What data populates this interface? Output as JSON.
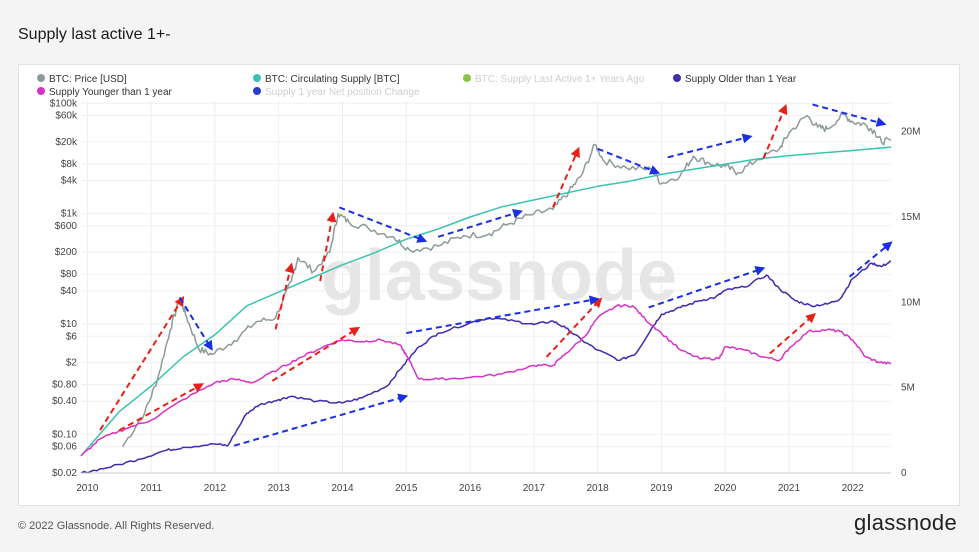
{
  "page": {
    "title": "Supply last active 1+-",
    "copyright": "© 2022 Glassnode. All Rights Reserved.",
    "brand": "glassnode",
    "watermark": "glassnode"
  },
  "chart_data": {
    "type": "line",
    "title": "Supply last active 1+-",
    "legend_position": "top-left",
    "grid": true,
    "x_range": [
      2009.9,
      2022.6
    ],
    "x_ticks": [
      {
        "label": "2010",
        "value": 2010
      },
      {
        "label": "2011",
        "value": 2011
      },
      {
        "label": "2012",
        "value": 2012
      },
      {
        "label": "2013",
        "value": 2013
      },
      {
        "label": "2014",
        "value": 2014
      },
      {
        "label": "2015",
        "value": 2015
      },
      {
        "label": "2016",
        "value": 2016
      },
      {
        "label": "2017",
        "value": 2017
      },
      {
        "label": "2018",
        "value": 2018
      },
      {
        "label": "2019",
        "value": 2019
      },
      {
        "label": "2020",
        "value": 2020
      },
      {
        "label": "2021",
        "value": 2021
      },
      {
        "label": "2022",
        "value": 2022
      }
    ],
    "y_left": {
      "scale": "log",
      "unit": "USD",
      "range": [
        0.02,
        110000
      ],
      "ticks": [
        {
          "label": "$100k",
          "value": 100000
        },
        {
          "label": "$60k",
          "value": 60000
        },
        {
          "label": "$20k",
          "value": 20000
        },
        {
          "label": "$8k",
          "value": 8000
        },
        {
          "label": "$4k",
          "value": 4000
        },
        {
          "label": "$1k",
          "value": 1000
        },
        {
          "label": "$600",
          "value": 600
        },
        {
          "label": "$200",
          "value": 200
        },
        {
          "label": "$80",
          "value": 80
        },
        {
          "label": "$40",
          "value": 40
        },
        {
          "label": "$10",
          "value": 10
        },
        {
          "label": "$6",
          "value": 6
        },
        {
          "label": "$2",
          "value": 2
        },
        {
          "label": "$0.80",
          "value": 0.8
        },
        {
          "label": "$0.40",
          "value": 0.4
        },
        {
          "label": "$0.10",
          "value": 0.1
        },
        {
          "label": "$0.06",
          "value": 0.06
        },
        {
          "label": "$0.02",
          "value": 0.02
        }
      ]
    },
    "y_right": {
      "scale": "linear",
      "unit": "BTC",
      "range": [
        0,
        21800000
      ],
      "ticks": [
        {
          "label": "20M",
          "value": 20000000
        },
        {
          "label": "15M",
          "value": 15000000
        },
        {
          "label": "10M",
          "value": 10000000
        },
        {
          "label": "5M",
          "value": 5000000
        },
        {
          "label": "0",
          "value": 0
        }
      ]
    },
    "series": [
      {
        "name": "BTC: Price [USD]",
        "color": "#8e9a9b",
        "axis": "left",
        "visible": true,
        "points": [
          [
            2010.55,
            0.06
          ],
          [
            2010.9,
            0.25
          ],
          [
            2011.1,
            1
          ],
          [
            2011.3,
            8
          ],
          [
            2011.45,
            30
          ],
          [
            2011.55,
            14
          ],
          [
            2011.75,
            3.5
          ],
          [
            2011.95,
            2.8
          ],
          [
            2012.3,
            5
          ],
          [
            2012.65,
            11
          ],
          [
            2012.95,
            13
          ],
          [
            2013.2,
            60
          ],
          [
            2013.3,
            160
          ],
          [
            2013.55,
            90
          ],
          [
            2013.8,
            200
          ],
          [
            2013.93,
            1000
          ],
          [
            2014.1,
            700
          ],
          [
            2014.4,
            550
          ],
          [
            2014.8,
            380
          ],
          [
            2015.05,
            220
          ],
          [
            2015.5,
            260
          ],
          [
            2015.9,
            400
          ],
          [
            2016.3,
            430
          ],
          [
            2016.6,
            650
          ],
          [
            2016.95,
            950
          ],
          [
            2017.3,
            1200
          ],
          [
            2017.55,
            2500
          ],
          [
            2017.75,
            5000
          ],
          [
            2017.96,
            18000
          ],
          [
            2018.1,
            9000
          ],
          [
            2018.45,
            6800
          ],
          [
            2018.85,
            6300
          ],
          [
            2019.0,
            3500
          ],
          [
            2019.3,
            5000
          ],
          [
            2019.5,
            11000
          ],
          [
            2019.75,
            8200
          ],
          [
            2020.0,
            7200
          ],
          [
            2020.2,
            5500
          ],
          [
            2020.5,
            9500
          ],
          [
            2020.85,
            15000
          ],
          [
            2021.0,
            29000
          ],
          [
            2021.28,
            60000
          ],
          [
            2021.45,
            37000
          ],
          [
            2021.6,
            34000
          ],
          [
            2021.85,
            63000
          ],
          [
            2022.0,
            46000
          ],
          [
            2022.2,
            41000
          ],
          [
            2022.35,
            30000
          ],
          [
            2022.45,
            20000
          ],
          [
            2022.6,
            21500
          ]
        ]
      },
      {
        "name": "BTC: Circulating Supply [BTC]",
        "color": "#3cc3b0",
        "axis": "right",
        "visible": true,
        "points": [
          [
            2009.9,
            1000000
          ],
          [
            2010.5,
            3600000
          ],
          [
            2011.0,
            5100000
          ],
          [
            2011.5,
            6800000
          ],
          [
            2012.0,
            8100000
          ],
          [
            2012.5,
            9800000
          ],
          [
            2013.0,
            10600000
          ],
          [
            2013.5,
            11400000
          ],
          [
            2014.0,
            12200000
          ],
          [
            2014.5,
            12900000
          ],
          [
            2015.0,
            13700000
          ],
          [
            2015.5,
            14300000
          ],
          [
            2016.0,
            15000000
          ],
          [
            2016.5,
            15600000
          ],
          [
            2017.0,
            16000000
          ],
          [
            2017.5,
            16400000
          ],
          [
            2018.0,
            16800000
          ],
          [
            2018.5,
            17100000
          ],
          [
            2019.0,
            17500000
          ],
          [
            2019.5,
            17800000
          ],
          [
            2020.0,
            18100000
          ],
          [
            2020.5,
            18400000
          ],
          [
            2021.0,
            18600000
          ],
          [
            2021.5,
            18750000
          ],
          [
            2022.0,
            18900000
          ],
          [
            2022.6,
            19100000
          ]
        ]
      },
      {
        "name": "BTC: Supply Last Active 1+ Years Ago",
        "color": "#8bc34a",
        "axis": "right",
        "visible": false,
        "points": []
      },
      {
        "name": "Supply Older than 1 Year",
        "color": "#3f2cb0",
        "axis": "right",
        "visible": true,
        "points": [
          [
            2009.9,
            0
          ],
          [
            2010.3,
            300000
          ],
          [
            2010.8,
            800000
          ],
          [
            2011.2,
            1300000
          ],
          [
            2011.5,
            1500000
          ],
          [
            2012.0,
            1700000
          ],
          [
            2012.2,
            1600000
          ],
          [
            2012.5,
            3500000
          ],
          [
            2012.7,
            4000000
          ],
          [
            2013.0,
            4300000
          ],
          [
            2013.2,
            4500000
          ],
          [
            2013.6,
            4200000
          ],
          [
            2014.0,
            4100000
          ],
          [
            2014.3,
            4400000
          ],
          [
            2014.7,
            5100000
          ],
          [
            2014.95,
            6300000
          ],
          [
            2015.2,
            7400000
          ],
          [
            2015.5,
            8200000
          ],
          [
            2016.0,
            8800000
          ],
          [
            2016.3,
            9100000
          ],
          [
            2016.7,
            8900000
          ],
          [
            2017.0,
            8700000
          ],
          [
            2017.3,
            8900000
          ],
          [
            2017.5,
            8500000
          ],
          [
            2017.75,
            7800000
          ],
          [
            2018.0,
            7200000
          ],
          [
            2018.35,
            6600000
          ],
          [
            2018.6,
            7000000
          ],
          [
            2018.85,
            8500000
          ],
          [
            2019.0,
            9300000
          ],
          [
            2019.3,
            9700000
          ],
          [
            2019.6,
            10100000
          ],
          [
            2019.85,
            10300000
          ],
          [
            2020.0,
            10700000
          ],
          [
            2020.3,
            10900000
          ],
          [
            2020.65,
            11600000
          ],
          [
            2020.85,
            10800000
          ],
          [
            2021.1,
            10100000
          ],
          [
            2021.35,
            9800000
          ],
          [
            2021.6,
            9900000
          ],
          [
            2021.8,
            10200000
          ],
          [
            2022.0,
            11400000
          ],
          [
            2022.3,
            12300000
          ],
          [
            2022.45,
            12100000
          ],
          [
            2022.6,
            12400000
          ]
        ]
      },
      {
        "name": "Supply Younger than 1 year",
        "color": "#d633c6",
        "axis": "right",
        "visible": true,
        "points": [
          [
            2009.9,
            1000000
          ],
          [
            2010.2,
            2000000
          ],
          [
            2010.6,
            2600000
          ],
          [
            2011.0,
            3100000
          ],
          [
            2011.5,
            4300000
          ],
          [
            2012.0,
            5300000
          ],
          [
            2012.3,
            5500000
          ],
          [
            2012.6,
            5300000
          ],
          [
            2013.0,
            6100000
          ],
          [
            2013.3,
            6700000
          ],
          [
            2013.7,
            7400000
          ],
          [
            2014.0,
            7800000
          ],
          [
            2014.3,
            7700000
          ],
          [
            2014.6,
            7800000
          ],
          [
            2014.9,
            7500000
          ],
          [
            2015.0,
            6900000
          ],
          [
            2015.2,
            5500000
          ],
          [
            2015.5,
            5500000
          ],
          [
            2016.0,
            5600000
          ],
          [
            2016.5,
            5800000
          ],
          [
            2017.0,
            6300000
          ],
          [
            2017.3,
            6300000
          ],
          [
            2017.5,
            7000000
          ],
          [
            2017.8,
            8000000
          ],
          [
            2018.0,
            9100000
          ],
          [
            2018.3,
            9800000
          ],
          [
            2018.55,
            9800000
          ],
          [
            2018.75,
            9000000
          ],
          [
            2019.0,
            8200000
          ],
          [
            2019.3,
            7200000
          ],
          [
            2019.6,
            6700000
          ],
          [
            2019.9,
            6700000
          ],
          [
            2020.0,
            7400000
          ],
          [
            2020.3,
            7200000
          ],
          [
            2020.6,
            6800000
          ],
          [
            2020.85,
            6600000
          ],
          [
            2021.0,
            7300000
          ],
          [
            2021.3,
            8300000
          ],
          [
            2021.6,
            8400000
          ],
          [
            2021.8,
            8300000
          ],
          [
            2022.0,
            7800000
          ],
          [
            2022.2,
            6800000
          ],
          [
            2022.4,
            6500000
          ],
          [
            2022.6,
            6400000
          ]
        ]
      },
      {
        "name": "Supply 1 year Net position Change",
        "color": "#2a3bd4",
        "axis": "right",
        "visible": false,
        "points": []
      }
    ],
    "annotations": [
      {
        "type": "arrow",
        "color": "red",
        "from": [
          2010.2,
          0.12
        ],
        "to": [
          2011.5,
          30
        ]
      },
      {
        "type": "arrow",
        "color": "blue",
        "from": [
          2011.45,
          30
        ],
        "to": [
          2011.95,
          3.5
        ]
      },
      {
        "type": "arrow",
        "color": "red",
        "from": [
          2012.95,
          8
        ],
        "to": [
          2013.2,
          120
        ]
      },
      {
        "type": "arrow",
        "color": "red",
        "from": [
          2013.65,
          60
        ],
        "to": [
          2013.85,
          1000
        ]
      },
      {
        "type": "arrow",
        "color": "blue",
        "from": [
          2013.95,
          1300
        ],
        "to": [
          2015.3,
          320
        ]
      },
      {
        "type": "arrow",
        "color": "blue",
        "from": [
          2015.5,
          380
        ],
        "to": [
          2016.8,
          1100
        ]
      },
      {
        "type": "arrow",
        "color": "red",
        "from": [
          2017.3,
          1300
        ],
        "to": [
          2017.7,
          15000
        ]
      },
      {
        "type": "arrow",
        "color": "blue",
        "from": [
          2018.0,
          15000
        ],
        "to": [
          2018.95,
          5500
        ]
      },
      {
        "type": "arrow",
        "color": "blue",
        "from": [
          2019.1,
          10500
        ],
        "to": [
          2020.4,
          25000
        ]
      },
      {
        "type": "arrow",
        "color": "red",
        "from": [
          2020.6,
          10000
        ],
        "to": [
          2020.95,
          90000
        ]
      },
      {
        "type": "arrow",
        "color": "blue",
        "from": [
          2021.37,
          95000
        ],
        "to": [
          2022.5,
          42000
        ]
      },
      {
        "type": "arrow",
        "color": "red",
        "from": [
          2010.5,
          2500000
        ],
        "to": [
          2011.8,
          5200000
        ]
      },
      {
        "type": "arrow",
        "color": "red",
        "from": [
          2012.9,
          5400000
        ],
        "to": [
          2014.25,
          8500000
        ]
      },
      {
        "type": "arrow",
        "color": "red",
        "from": [
          2017.2,
          6800000
        ],
        "to": [
          2018.05,
          10200000
        ]
      },
      {
        "type": "arrow",
        "color": "red",
        "from": [
          2020.7,
          7000000
        ],
        "to": [
          2021.4,
          9300000
        ]
      },
      {
        "type": "arrow",
        "color": "blue",
        "from": [
          2012.3,
          1600000
        ],
        "to": [
          2015.0,
          4500000
        ]
      },
      {
        "type": "arrow",
        "color": "blue",
        "from": [
          2015.0,
          8200000
        ],
        "to": [
          2018.0,
          10200000
        ]
      },
      {
        "type": "arrow",
        "color": "blue",
        "from": [
          2018.8,
          9700000
        ],
        "to": [
          2020.6,
          12000000
        ]
      },
      {
        "type": "arrow",
        "color": "blue",
        "from": [
          2021.95,
          11500000
        ],
        "to": [
          2022.6,
          13500000
        ]
      }
    ]
  }
}
